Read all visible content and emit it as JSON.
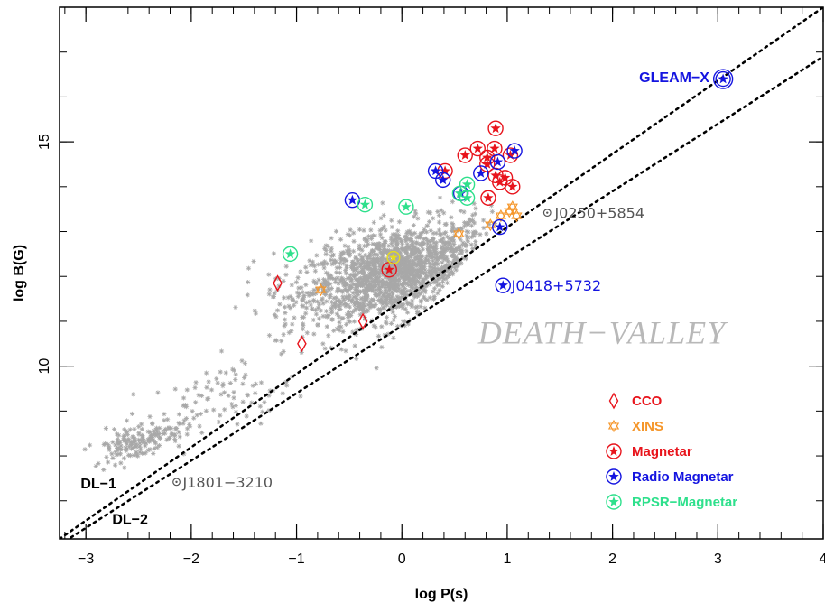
{
  "chart_data": {
    "type": "scatter",
    "title": "",
    "xlabel": "log P(s)",
    "ylabel": "log B(G)",
    "xlim": [
      -3.25,
      4.0
    ],
    "ylim": [
      6.15,
      18.0
    ],
    "x_ticks": [
      -3,
      -2,
      -1,
      0,
      1,
      2,
      3,
      4
    ],
    "y_ticks": [
      10,
      15
    ],
    "grid": false,
    "legend_position": "bottom-right",
    "colors": {
      "pulsars": "#a8a8a8",
      "cco": "#e8141c",
      "xins": "#f5962a",
      "magnetar": "#e8141c",
      "radio_magnetar": "#1414e0",
      "rpsr_magnetar": "#2ee08c",
      "annotation_gray": "#666666",
      "death_valley": "#b8b8b8"
    },
    "death_lines": [
      {
        "name": "DL-1",
        "points": [
          [
            -3.25,
            6.15
          ],
          [
            4.0,
            18.0
          ]
        ]
      },
      {
        "name": "DL-2",
        "points": [
          [
            -3.25,
            6.02
          ],
          [
            4.0,
            16.9
          ]
        ]
      }
    ],
    "series": [
      {
        "name": "CCO",
        "marker": "diamond",
        "points": [
          [
            -1.18,
            11.85
          ],
          [
            -0.95,
            10.5
          ],
          [
            -0.37,
            11.0
          ]
        ]
      },
      {
        "name": "XINS",
        "marker": "hexagram",
        "points": [
          [
            -0.77,
            11.7
          ],
          [
            0.54,
            12.95
          ],
          [
            0.84,
            13.15
          ],
          [
            0.94,
            13.35
          ],
          [
            1.02,
            13.45
          ],
          [
            1.05,
            13.55
          ],
          [
            1.09,
            13.35
          ]
        ]
      },
      {
        "name": "Magnetar",
        "marker": "circled-star",
        "points": [
          [
            -0.12,
            12.15
          ],
          [
            0.41,
            14.35
          ],
          [
            0.6,
            14.7
          ],
          [
            0.72,
            14.85
          ],
          [
            0.81,
            14.65
          ],
          [
            0.88,
            14.85
          ],
          [
            0.89,
            15.3
          ],
          [
            0.93,
            14.1
          ],
          [
            0.89,
            14.25
          ],
          [
            0.98,
            14.2
          ],
          [
            1.03,
            14.7
          ],
          [
            1.05,
            14.0
          ],
          [
            0.82,
            13.75
          ],
          [
            0.81,
            14.5
          ]
        ]
      },
      {
        "name": "Radio Magnetar",
        "marker": "circled-star",
        "points": [
          [
            -0.47,
            13.7
          ],
          [
            0.32,
            14.35
          ],
          [
            0.39,
            14.15
          ],
          [
            0.56,
            13.85
          ],
          [
            0.75,
            14.3
          ],
          [
            0.91,
            14.55
          ],
          [
            1.07,
            14.8
          ],
          [
            0.93,
            13.1
          ],
          [
            0.96,
            11.8
          ],
          [
            3.05,
            16.4
          ]
        ]
      },
      {
        "name": "RPSR-Magnetar",
        "marker": "circled-star",
        "points": [
          [
            -1.06,
            12.5
          ],
          [
            -0.35,
            13.6
          ],
          [
            0.04,
            13.55
          ],
          [
            0.55,
            13.85
          ],
          [
            0.62,
            14.05
          ],
          [
            0.62,
            13.75
          ]
        ]
      }
    ],
    "pulsar_population": {
      "marker": "asterisk",
      "description_visible": "grey asterisk cloud of radio pulsars",
      "clusters": [
        {
          "cx": 0.0,
          "cy": 12.1,
          "sx": 0.42,
          "sy": 0.5,
          "n": 1550
        },
        {
          "cx": -0.55,
          "cy": 11.8,
          "sx": 0.35,
          "sy": 0.55,
          "n": 250
        },
        {
          "cx": -2.5,
          "cy": 8.35,
          "sx": 0.22,
          "sy": 0.2,
          "n": 170
        },
        {
          "cx": -1.7,
          "cy": 9.3,
          "sx": 0.35,
          "sy": 0.35,
          "n": 90
        }
      ]
    },
    "annotations": [
      {
        "text": "GLEAM−X",
        "x": 2.92,
        "y": 16.45,
        "color": "#1414e0",
        "bold": true,
        "anchor": "end"
      },
      {
        "text": "J0250+5854",
        "x": 1.45,
        "y": 13.42,
        "color": "#555555",
        "bold": false,
        "anchor": "start",
        "marker": "circle-dot",
        "mx": 1.38,
        "my": 13.42
      },
      {
        "text": "J0418+5732",
        "x": 1.04,
        "y": 11.8,
        "color": "#1414e0",
        "bold": false,
        "anchor": "start"
      },
      {
        "text": "J1801−3210",
        "x": -2.08,
        "y": 7.42,
        "color": "#555555",
        "bold": false,
        "anchor": "start",
        "marker": "circle-dot",
        "mx": -2.14,
        "my": 7.42
      },
      {
        "text": "DL−1",
        "x": -3.05,
        "y": 7.4,
        "color": "#000000",
        "bold": true,
        "anchor": "start"
      },
      {
        "text": "DL−2",
        "x": -2.75,
        "y": 6.6,
        "color": "#000000",
        "bold": true,
        "anchor": "start"
      }
    ],
    "region_label": {
      "text": "DEATH−VALLEY",
      "x": 1.9,
      "y": 10.75
    },
    "legend": [
      {
        "label": "CCO",
        "color": "#e8141c",
        "marker": "diamond"
      },
      {
        "label": "XINS",
        "color": "#f5962a",
        "marker": "hexagram"
      },
      {
        "label": "Magnetar",
        "color": "#e8141c",
        "marker": "circled-star"
      },
      {
        "label": "Radio Magnetar",
        "color": "#1414e0",
        "marker": "circled-star"
      },
      {
        "label": "RPSR−Magnetar",
        "color": "#2ee08c",
        "marker": "circled-star"
      }
    ]
  }
}
